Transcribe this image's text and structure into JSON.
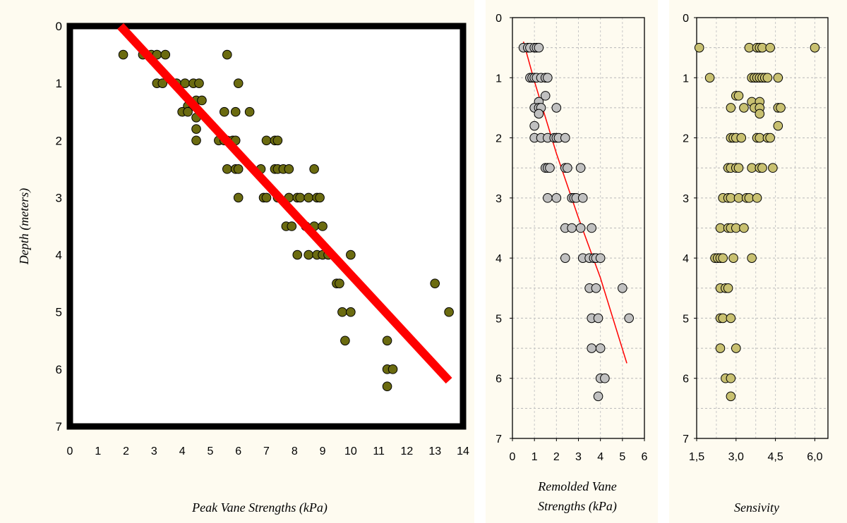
{
  "colors": {
    "panel_bg": "#fefbf0",
    "peak_marker": "#6b6b10",
    "remolded_marker": "#c0c0c0",
    "sensitivity_marker": "#c8c070",
    "trend_peak": "#ff0000",
    "trend_remolded": "#ff0000"
  },
  "chart_data": [
    {
      "type": "scatter",
      "xlabel": "Peak Vane Strengths (kPa)",
      "ylabel": "Depth (meters)",
      "xlim": [
        0,
        14
      ],
      "ylim": [
        7,
        0
      ],
      "x_ticks": [
        "0",
        "1",
        "2",
        "3",
        "4",
        "5",
        "6",
        "7",
        "8",
        "9",
        "10",
        "11",
        "12",
        "13",
        "14"
      ],
      "y_ticks": [
        "0",
        "1",
        "2",
        "3",
        "4",
        "5",
        "6",
        "7"
      ],
      "grid": true,
      "series": [
        {
          "points": [
            [
              1.9,
              0.5
            ],
            [
              2.6,
              0.5
            ],
            [
              2.9,
              0.5
            ],
            [
              3.1,
              0.5
            ],
            [
              3.4,
              0.5
            ],
            [
              5.6,
              0.5
            ],
            [
              3.1,
              1.0
            ],
            [
              3.3,
              1.0
            ],
            [
              3.8,
              1.0
            ],
            [
              4.1,
              1.0
            ],
            [
              4.4,
              1.0
            ],
            [
              4.6,
              1.0
            ],
            [
              6.0,
              1.0
            ],
            [
              4.5,
              1.3
            ],
            [
              4.7,
              1.3
            ],
            [
              4.2,
              1.4
            ],
            [
              4.4,
              1.4
            ],
            [
              4.0,
              1.5
            ],
            [
              4.2,
              1.5
            ],
            [
              5.5,
              1.5
            ],
            [
              5.9,
              1.5
            ],
            [
              6.4,
              1.5
            ],
            [
              4.5,
              1.6
            ],
            [
              4.5,
              1.8
            ],
            [
              4.5,
              2.0
            ],
            [
              5.3,
              2.0
            ],
            [
              5.5,
              2.0
            ],
            [
              5.6,
              2.0
            ],
            [
              5.8,
              2.0
            ],
            [
              5.9,
              2.0
            ],
            [
              7.0,
              2.0
            ],
            [
              7.3,
              2.0
            ],
            [
              7.4,
              2.0
            ],
            [
              5.6,
              2.5
            ],
            [
              5.9,
              2.5
            ],
            [
              6.0,
              2.5
            ],
            [
              6.8,
              2.5
            ],
            [
              7.3,
              2.5
            ],
            [
              7.4,
              2.5
            ],
            [
              7.6,
              2.5
            ],
            [
              7.8,
              2.5
            ],
            [
              8.7,
              2.5
            ],
            [
              6.0,
              3.0
            ],
            [
              6.9,
              3.0
            ],
            [
              7.0,
              3.0
            ],
            [
              7.4,
              3.0
            ],
            [
              7.8,
              3.0
            ],
            [
              8.1,
              3.0
            ],
            [
              8.2,
              3.0
            ],
            [
              8.5,
              3.0
            ],
            [
              8.8,
              3.0
            ],
            [
              8.9,
              3.0
            ],
            [
              7.7,
              3.5
            ],
            [
              7.9,
              3.5
            ],
            [
              8.4,
              3.5
            ],
            [
              8.7,
              3.5
            ],
            [
              9.0,
              3.5
            ],
            [
              8.1,
              4.0
            ],
            [
              8.5,
              4.0
            ],
            [
              8.8,
              4.0
            ],
            [
              9.0,
              4.0
            ],
            [
              9.2,
              4.0
            ],
            [
              10.0,
              4.0
            ],
            [
              9.5,
              4.5
            ],
            [
              9.6,
              4.5
            ],
            [
              13.0,
              4.5
            ],
            [
              9.7,
              5.0
            ],
            [
              10.0,
              5.0
            ],
            [
              13.5,
              5.0
            ],
            [
              9.8,
              5.5
            ],
            [
              11.3,
              5.5
            ],
            [
              11.3,
              6.0
            ],
            [
              11.5,
              6.0
            ],
            [
              11.3,
              6.3
            ]
          ]
        }
      ],
      "trend_line": [
        [
          1.8,
          0.0
        ],
        [
          13.5,
          6.2
        ]
      ]
    },
    {
      "type": "scatter",
      "xlabel": "Remolded Vane Strengths (kPa)",
      "xlim": [
        0,
        6
      ],
      "ylim": [
        7,
        0
      ],
      "x_ticks": [
        "0",
        "1",
        "2",
        "3",
        "4",
        "5",
        "6"
      ],
      "y_ticks": [
        "0",
        "1",
        "2",
        "3",
        "4",
        "5",
        "6",
        "7"
      ],
      "grid": true,
      "series": [
        {
          "points": [
            [
              0.5,
              0.5
            ],
            [
              0.7,
              0.5
            ],
            [
              0.8,
              0.5
            ],
            [
              1.0,
              0.5
            ],
            [
              1.1,
              0.5
            ],
            [
              1.2,
              0.5
            ],
            [
              0.8,
              1.0
            ],
            [
              0.9,
              1.0
            ],
            [
              1.0,
              1.0
            ],
            [
              1.1,
              1.0
            ],
            [
              1.3,
              1.0
            ],
            [
              1.5,
              1.0
            ],
            [
              1.6,
              1.0
            ],
            [
              1.5,
              1.3
            ],
            [
              1.2,
              1.4
            ],
            [
              1.0,
              1.5
            ],
            [
              1.2,
              1.5
            ],
            [
              1.3,
              1.5
            ],
            [
              2.0,
              1.5
            ],
            [
              1.2,
              1.6
            ],
            [
              1.0,
              1.8
            ],
            [
              1.0,
              2.0
            ],
            [
              1.3,
              2.0
            ],
            [
              1.6,
              2.0
            ],
            [
              1.9,
              2.0
            ],
            [
              2.0,
              2.0
            ],
            [
              2.1,
              2.0
            ],
            [
              2.4,
              2.0
            ],
            [
              1.5,
              2.5
            ],
            [
              1.6,
              2.5
            ],
            [
              1.7,
              2.5
            ],
            [
              2.4,
              2.5
            ],
            [
              2.5,
              2.5
            ],
            [
              3.1,
              2.5
            ],
            [
              1.6,
              3.0
            ],
            [
              2.0,
              3.0
            ],
            [
              2.7,
              3.0
            ],
            [
              2.8,
              3.0
            ],
            [
              2.9,
              3.0
            ],
            [
              3.2,
              3.0
            ],
            [
              2.4,
              3.5
            ],
            [
              2.7,
              3.5
            ],
            [
              3.1,
              3.5
            ],
            [
              3.6,
              3.5
            ],
            [
              2.4,
              4.0
            ],
            [
              3.2,
              4.0
            ],
            [
              3.5,
              4.0
            ],
            [
              3.7,
              4.0
            ],
            [
              3.8,
              4.0
            ],
            [
              4.0,
              4.0
            ],
            [
              3.5,
              4.5
            ],
            [
              3.8,
              4.5
            ],
            [
              5.0,
              4.5
            ],
            [
              3.6,
              5.0
            ],
            [
              3.9,
              5.0
            ],
            [
              5.3,
              5.0
            ],
            [
              3.6,
              5.5
            ],
            [
              4.0,
              5.5
            ],
            [
              4.0,
              6.0
            ],
            [
              4.2,
              6.0
            ],
            [
              3.9,
              6.3
            ]
          ]
        }
      ],
      "trend_line": [
        [
          0.5,
          0.4
        ],
        [
          1.0,
          1.06
        ],
        [
          2.0,
          2.26
        ],
        [
          3.0,
          3.33
        ],
        [
          4.0,
          4.33
        ],
        [
          5.2,
          5.75
        ]
      ]
    },
    {
      "type": "scatter",
      "xlabel": "Sensivity",
      "xlim": [
        1.5,
        6.5
      ],
      "ylim": [
        7,
        0
      ],
      "x_ticks": [
        "1,5",
        "3,0",
        "4,5",
        "6,0"
      ],
      "y_ticks": [
        "0",
        "1",
        "2",
        "3",
        "4",
        "5",
        "6",
        "7"
      ],
      "grid": true,
      "series": [
        {
          "points": [
            [
              1.6,
              0.5
            ],
            [
              3.5,
              0.5
            ],
            [
              3.8,
              0.5
            ],
            [
              3.9,
              0.5
            ],
            [
              4.0,
              0.5
            ],
            [
              4.3,
              0.5
            ],
            [
              6.0,
              0.5
            ],
            [
              2.0,
              1.0
            ],
            [
              3.6,
              1.0
            ],
            [
              3.7,
              1.0
            ],
            [
              3.8,
              1.0
            ],
            [
              3.9,
              1.0
            ],
            [
              4.0,
              1.0
            ],
            [
              4.1,
              1.0
            ],
            [
              4.2,
              1.0
            ],
            [
              4.6,
              1.0
            ],
            [
              3.0,
              1.3
            ],
            [
              3.1,
              1.3
            ],
            [
              3.6,
              1.4
            ],
            [
              3.9,
              1.4
            ],
            [
              2.8,
              1.5
            ],
            [
              3.3,
              1.5
            ],
            [
              3.7,
              1.5
            ],
            [
              3.9,
              1.5
            ],
            [
              4.6,
              1.5
            ],
            [
              4.7,
              1.5
            ],
            [
              3.9,
              1.6
            ],
            [
              4.6,
              1.8
            ],
            [
              2.8,
              2.0
            ],
            [
              2.9,
              2.0
            ],
            [
              3.0,
              2.0
            ],
            [
              3.2,
              2.0
            ],
            [
              3.8,
              2.0
            ],
            [
              3.9,
              2.0
            ],
            [
              4.2,
              2.0
            ],
            [
              4.3,
              2.0
            ],
            [
              2.7,
              2.5
            ],
            [
              2.8,
              2.5
            ],
            [
              3.0,
              2.5
            ],
            [
              3.1,
              2.5
            ],
            [
              3.6,
              2.5
            ],
            [
              3.9,
              2.5
            ],
            [
              4.0,
              2.5
            ],
            [
              4.4,
              2.5
            ],
            [
              2.5,
              3.0
            ],
            [
              2.7,
              3.0
            ],
            [
              2.8,
              3.0
            ],
            [
              3.1,
              3.0
            ],
            [
              3.4,
              3.0
            ],
            [
              3.5,
              3.0
            ],
            [
              3.8,
              3.0
            ],
            [
              2.4,
              3.5
            ],
            [
              2.7,
              3.5
            ],
            [
              2.8,
              3.5
            ],
            [
              3.0,
              3.5
            ],
            [
              3.3,
              3.5
            ],
            [
              2.2,
              4.0
            ],
            [
              2.3,
              4.0
            ],
            [
              2.4,
              4.0
            ],
            [
              2.5,
              4.0
            ],
            [
              2.9,
              4.0
            ],
            [
              3.6,
              4.0
            ],
            [
              2.4,
              4.5
            ],
            [
              2.6,
              4.5
            ],
            [
              2.7,
              4.5
            ],
            [
              2.4,
              5.0
            ],
            [
              2.5,
              5.0
            ],
            [
              2.8,
              5.0
            ],
            [
              2.4,
              5.5
            ],
            [
              3.0,
              5.5
            ],
            [
              2.6,
              6.0
            ],
            [
              2.8,
              6.0
            ],
            [
              2.8,
              6.3
            ]
          ]
        }
      ]
    }
  ]
}
